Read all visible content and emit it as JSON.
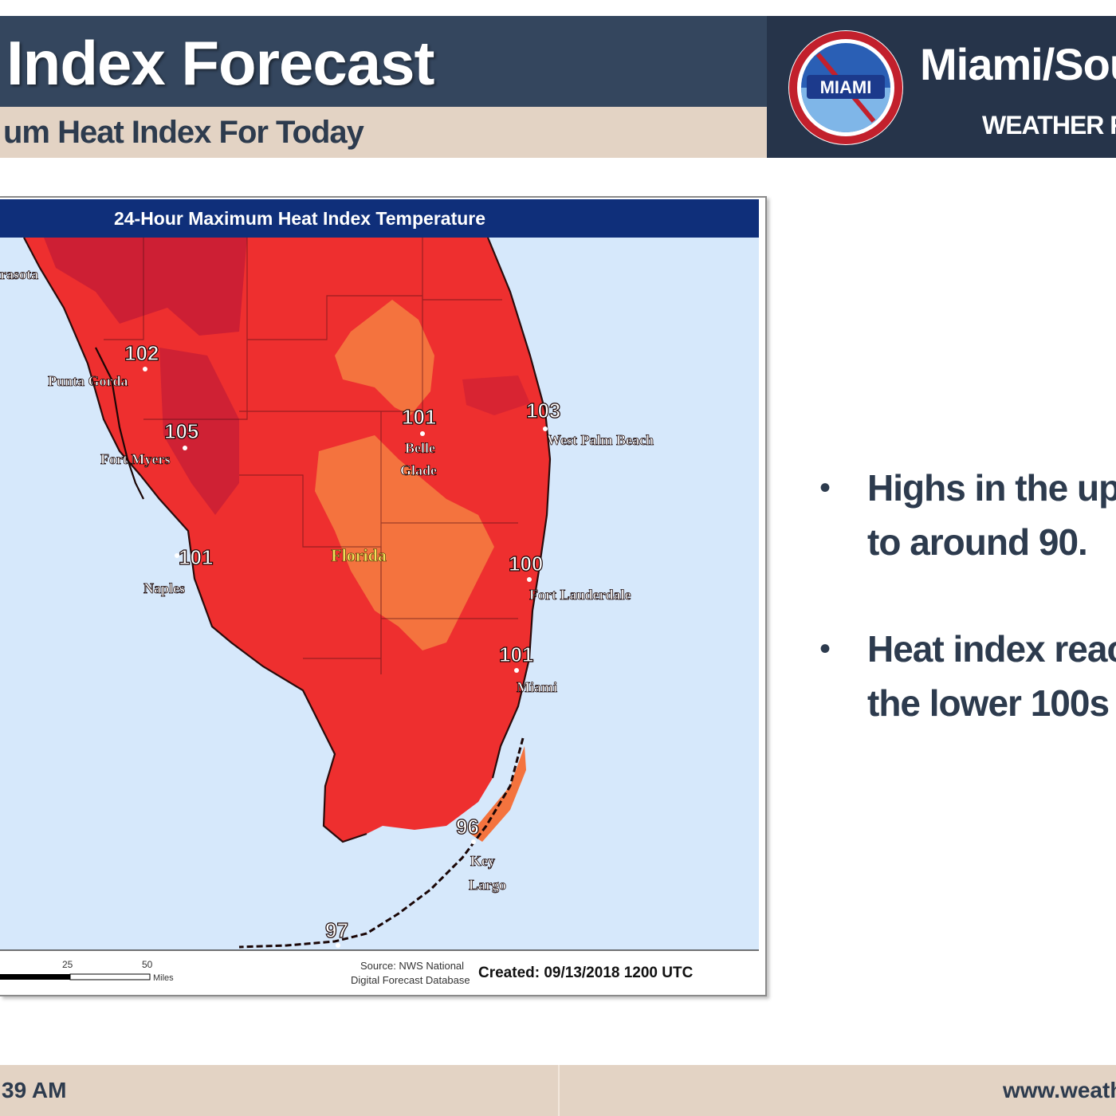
{
  "header": {
    "title": "Index Forecast",
    "subtitle": "um Heat Index For Today"
  },
  "office": {
    "name": "Miami/Sou",
    "subtitle": "WEATHER FO",
    "logo_text": "MIAMI"
  },
  "map": {
    "title": "24-Hour Maximum Heat Index Temperature",
    "state_label": "Florida",
    "stations": [
      {
        "name": "rasota",
        "value": ""
      },
      {
        "name": "Punta Gorda",
        "value": "102"
      },
      {
        "name": "Fort Myers",
        "value": "105"
      },
      {
        "name": "Naples",
        "value": "101"
      },
      {
        "name": "Belle Glade",
        "value": "101"
      },
      {
        "name": "West Palm Beach",
        "value": "103"
      },
      {
        "name": "Fort Lauderdale",
        "value": "100"
      },
      {
        "name": "Miami",
        "value": "101"
      },
      {
        "name": "Key Largo",
        "value": "96"
      },
      {
        "name": "",
        "value": "97"
      }
    ],
    "scale": {
      "tick_1": "25",
      "tick_2": "50",
      "unit": "Miles"
    },
    "source_line1": "Source: NWS National",
    "source_line2": "Digital Forecast Database",
    "created": "Created: 09/13/2018 1200 UTC",
    "colors": {
      "water": "#d6e8fb",
      "heat_warm": "#f4733e",
      "heat_hot": "#ee2f2f",
      "heat_very_hot": "#c91e35",
      "title_bar": "#0f2f7a"
    }
  },
  "bullets": [
    {
      "line1": "Highs in the up",
      "line2": "to around 90."
    },
    {
      "line1": "Heat index reac",
      "line2": "the lower 100s"
    }
  ],
  "footer": {
    "time": "39 AM",
    "url": "www.weath"
  }
}
